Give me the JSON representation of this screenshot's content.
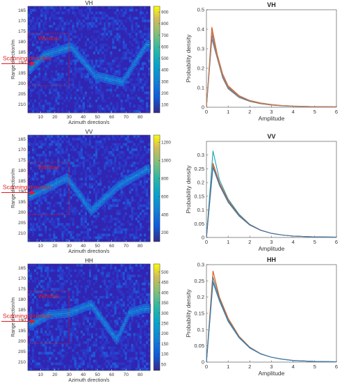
{
  "chart_data": [
    {
      "type": "heatmap",
      "title": "VH",
      "xlabel": "Azimuth direction/s",
      "ylabel": "Range direction/m",
      "xlim": [
        1,
        87
      ],
      "ylim": [
        214,
        163
      ],
      "x_ticks": [
        10,
        20,
        30,
        40,
        50,
        60,
        70,
        80
      ],
      "y_ticks": [
        165,
        170,
        175,
        180,
        185,
        190,
        195,
        200,
        205,
        210
      ],
      "colorbar": {
        "min": 30,
        "max": 950,
        "ticks": [
          100,
          200,
          300,
          400,
          500,
          600,
          700,
          800,
          900
        ]
      },
      "signal_track": {
        "x": [
          2,
          12,
          31,
          48,
          67,
          84
        ],
        "y": [
          193,
          186,
          182,
          196,
          199,
          181
        ]
      },
      "annotations": {
        "window": "Window",
        "scan": "Scanning direction",
        "window_box": {
          "x": [
            1,
            30
          ],
          "y": [
            176,
            201
          ]
        }
      }
    },
    {
      "type": "line",
      "title": "VH",
      "xlabel": "Amplitude",
      "ylabel": "Probability density",
      "xlim": [
        0,
        6
      ],
      "ylim": [
        0,
        0.5
      ],
      "x_ticks": [
        0,
        1,
        2,
        3,
        4,
        5,
        6
      ],
      "y_ticks": [
        0,
        0.1,
        0.2,
        0.3,
        0.4,
        0.5
      ],
      "x": [
        0,
        0.25,
        0.5,
        0.75,
        1,
        1.5,
        2,
        2.5,
        3,
        3.5,
        4,
        5,
        6
      ],
      "series": [
        {
          "values": [
            0,
            0.41,
            0.27,
            0.17,
            0.11,
            0.06,
            0.035,
            0.022,
            0.014,
            0.009,
            0.006,
            0.003,
            0.002
          ],
          "color": "#d95319"
        },
        {
          "values": [
            0,
            0.37,
            0.26,
            0.16,
            0.1,
            0.055,
            0.032,
            0.02,
            0.012,
            0.008,
            0.005,
            0.003,
            0.002
          ],
          "color": "#4477aa"
        },
        {
          "values": [
            0,
            0.35,
            0.25,
            0.15,
            0.095,
            0.05,
            0.03,
            0.018,
            0.011,
            0.007,
            0.005,
            0.003,
            0.002
          ],
          "color": "#777777"
        },
        {
          "values": [
            0,
            0.39,
            0.26,
            0.165,
            0.105,
            0.058,
            0.034,
            0.021,
            0.013,
            0.009,
            0.006,
            0.003,
            0.002
          ],
          "color": "#c08060"
        }
      ]
    },
    {
      "type": "heatmap",
      "title": "VV",
      "xlabel": "Azimuth direction/s",
      "ylabel": "Range direction/m",
      "xlim": [
        1,
        87
      ],
      "ylim": [
        214,
        163
      ],
      "x_ticks": [
        10,
        20,
        30,
        40,
        50,
        60,
        70,
        80
      ],
      "y_ticks": [
        165,
        170,
        175,
        180,
        185,
        190,
        195,
        200,
        205,
        210
      ],
      "colorbar": {
        "min": 100,
        "max": 1280,
        "ticks": [
          200,
          400,
          600,
          800,
          1000,
          1200
        ]
      },
      "signal_track": {
        "x": [
          2,
          14,
          28,
          45,
          64,
          84
        ],
        "y": [
          192,
          188,
          183,
          199,
          187,
          179
        ]
      },
      "annotations": {
        "window": "Window",
        "scan": "Scanning direction",
        "window_box": {
          "x": [
            1,
            30
          ],
          "y": [
            176,
            201
          ]
        }
      }
    },
    {
      "type": "line",
      "title": "VV",
      "xlabel": "Amplitude",
      "ylabel": "Probability density",
      "xlim": [
        0,
        6
      ],
      "ylim": [
        0,
        0.35
      ],
      "x_ticks": [
        0,
        1,
        2,
        3,
        4,
        5,
        6
      ],
      "y_ticks": [
        0,
        0.05,
        0.1,
        0.15,
        0.2,
        0.25,
        0.3
      ],
      "x": [
        0,
        0.3,
        0.6,
        1,
        1.5,
        2,
        2.5,
        3,
        3.5,
        4,
        5,
        6
      ],
      "series": [
        {
          "values": [
            0,
            0.315,
            0.21,
            0.14,
            0.085,
            0.048,
            0.027,
            0.015,
            0.009,
            0.005,
            0.002,
            0.001
          ],
          "color": "#1aa3b5"
        },
        {
          "values": [
            0,
            0.27,
            0.2,
            0.135,
            0.082,
            0.047,
            0.027,
            0.015,
            0.009,
            0.005,
            0.002,
            0.001
          ],
          "color": "#d95319"
        },
        {
          "values": [
            0,
            0.26,
            0.195,
            0.13,
            0.08,
            0.046,
            0.026,
            0.015,
            0.009,
            0.005,
            0.002,
            0.001
          ],
          "color": "#777777"
        },
        {
          "values": [
            0,
            0.255,
            0.19,
            0.128,
            0.078,
            0.045,
            0.026,
            0.015,
            0.009,
            0.005,
            0.002,
            0.001
          ],
          "color": "#4477aa"
        }
      ]
    },
    {
      "type": "heatmap",
      "title": "HH",
      "xlabel": "Azimuth direction/s",
      "ylabel": "Range direction/m",
      "xlim": [
        1,
        87
      ],
      "ylim": [
        214,
        163
      ],
      "x_ticks": [
        10,
        20,
        30,
        40,
        50,
        60,
        70,
        80
      ],
      "y_ticks": [
        165,
        170,
        175,
        180,
        185,
        190,
        195,
        200,
        205,
        210
      ],
      "colorbar": {
        "min": 20,
        "max": 540,
        "ticks": [
          50,
          100,
          150,
          200,
          250,
          300,
          350,
          400,
          450,
          500
        ]
      },
      "signal_track": {
        "x": [
          2,
          15,
          30,
          45,
          63,
          72,
          82
        ],
        "y": [
          192,
          187,
          186,
          182,
          199,
          186,
          184
        ]
      },
      "annotations": {
        "window": "Window",
        "scan": "Scanning direction",
        "window_box": {
          "x": [
            1,
            30
          ],
          "y": [
            176,
            201
          ]
        }
      }
    },
    {
      "type": "line",
      "title": "HH",
      "xlabel": "Amplitude",
      "ylabel": "Probability density",
      "xlim": [
        0,
        6
      ],
      "ylim": [
        0,
        0.3
      ],
      "x_ticks": [
        0,
        1,
        2,
        3,
        4,
        5,
        6
      ],
      "y_ticks": [
        0,
        0.05,
        0.1,
        0.15,
        0.2,
        0.25,
        0.3
      ],
      "x": [
        0,
        0.3,
        0.6,
        1,
        1.5,
        2,
        2.5,
        3,
        3.5,
        4,
        5,
        6
      ],
      "series": [
        {
          "values": [
            0,
            0.28,
            0.2,
            0.135,
            0.08,
            0.046,
            0.026,
            0.015,
            0.009,
            0.005,
            0.002,
            0.001
          ],
          "color": "#d95319"
        },
        {
          "values": [
            0,
            0.262,
            0.195,
            0.13,
            0.078,
            0.045,
            0.026,
            0.015,
            0.009,
            0.005,
            0.002,
            0.001
          ],
          "color": "#777777"
        },
        {
          "values": [
            0,
            0.25,
            0.19,
            0.127,
            0.076,
            0.044,
            0.025,
            0.015,
            0.009,
            0.005,
            0.002,
            0.001
          ],
          "color": "#1aa3b5"
        },
        {
          "values": [
            0,
            0.245,
            0.188,
            0.125,
            0.075,
            0.043,
            0.025,
            0.015,
            0.009,
            0.005,
            0.002,
            0.001
          ],
          "color": "#4477aa"
        }
      ]
    }
  ]
}
